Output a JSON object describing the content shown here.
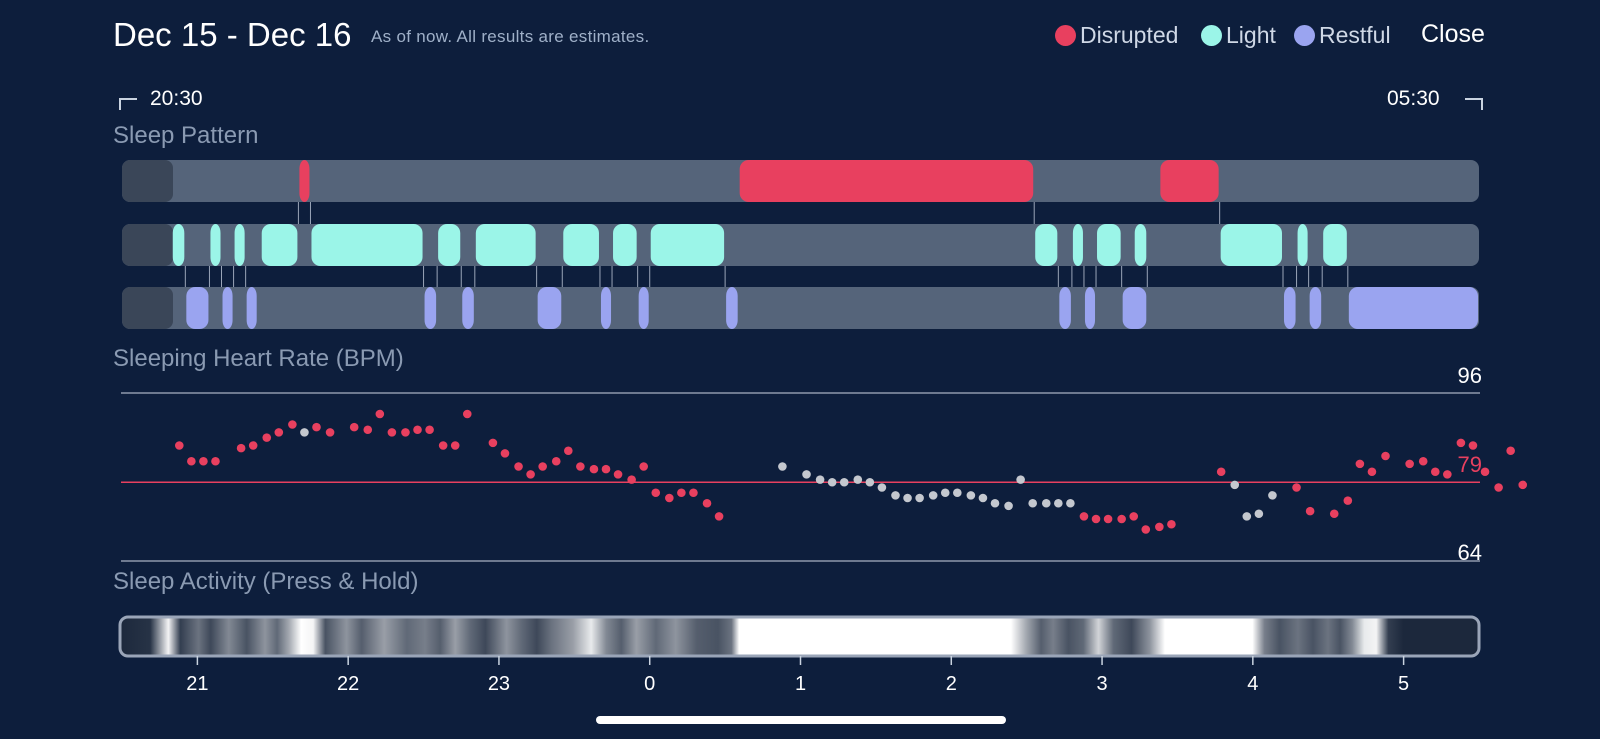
{
  "header": {
    "title": "Dec 15 - Dec 16",
    "subtitle": "As of now. All results are estimates.",
    "close_label": "Close"
  },
  "legend": [
    {
      "label": "Disrupted",
      "color": "#e8405f"
    },
    {
      "label": "Light",
      "color": "#9bf5e8"
    },
    {
      "label": "Restful",
      "color": "#9aa4f0"
    }
  ],
  "time_range": {
    "start": "20:30",
    "end": "05:30"
  },
  "sections": {
    "sleep_pattern": "Sleep Pattern",
    "heart_rate": "Sleeping Heart Rate (BPM)",
    "activity": "Sleep Activity (Press & Hold)"
  },
  "colors": {
    "background": "#0d1e3c",
    "track": "#55647a",
    "disrupted": "#e8405f",
    "light": "#9bf5e8",
    "restful": "#9aa4f0",
    "hr_dot_gray": "#c4c8cf",
    "avg_line": "#e8405f",
    "range_line": "#8e99ab"
  },
  "chart_data": [
    {
      "type": "timeline",
      "title": "Sleep Pattern",
      "x_unit": "hours since 20:30",
      "x_range": [
        0,
        9
      ],
      "rows": [
        {
          "name": "Disrupted",
          "segments": [
            [
              1.17,
              1.25
            ],
            [
              4.09,
              6.05
            ],
            [
              6.88,
              7.28
            ]
          ]
        },
        {
          "name": "Light",
          "segments": [
            [
              0.33,
              0.42
            ],
            [
              0.58,
              0.66
            ],
            [
              0.74,
              0.82
            ],
            [
              0.92,
              1.17
            ],
            [
              1.25,
              2.0
            ],
            [
              2.09,
              2.25
            ],
            [
              2.34,
              2.75
            ],
            [
              2.92,
              3.17
            ],
            [
              3.25,
              3.42
            ],
            [
              3.5,
              4.0
            ],
            [
              6.05,
              6.21
            ],
            [
              6.3,
              6.38
            ],
            [
              6.46,
              6.63
            ],
            [
              6.71,
              6.8
            ],
            [
              7.28,
              7.7
            ],
            [
              7.79,
              7.87
            ],
            [
              7.96,
              8.13
            ]
          ]
        },
        {
          "name": "Restful",
          "segments": [
            [
              0.42,
              0.58
            ],
            [
              0.66,
              0.74
            ],
            [
              0.82,
              0.9
            ],
            [
              2.0,
              2.09
            ],
            [
              2.25,
              2.34
            ],
            [
              2.75,
              2.92
            ],
            [
              3.17,
              3.25
            ],
            [
              3.42,
              3.5
            ],
            [
              4.0,
              4.09
            ],
            [
              6.21,
              6.3
            ],
            [
              6.38,
              6.46
            ],
            [
              6.63,
              6.8
            ],
            [
              7.7,
              7.79
            ],
            [
              7.87,
              7.96
            ],
            [
              8.13,
              9.0
            ]
          ]
        }
      ]
    },
    {
      "type": "scatter",
      "title": "Sleeping Heart Rate (BPM)",
      "x_unit": "hours since 20:30",
      "y_range": [
        64,
        96
      ],
      "average": 79,
      "y_labels": [
        "96",
        "79",
        "64"
      ],
      "points": [
        [
          0.38,
          86
        ],
        [
          0.46,
          83
        ],
        [
          0.54,
          83
        ],
        [
          0.62,
          83
        ],
        [
          0.79,
          85.5
        ],
        [
          0.87,
          86
        ],
        [
          0.96,
          87.5
        ],
        [
          1.04,
          88.5
        ],
        [
          1.13,
          90
        ],
        [
          1.21,
          88.5,
          "gray"
        ],
        [
          1.29,
          89.5
        ],
        [
          1.38,
          88.5
        ],
        [
          1.54,
          89.5
        ],
        [
          1.63,
          89
        ],
        [
          1.71,
          92
        ],
        [
          1.79,
          88.5
        ],
        [
          1.88,
          88.5
        ],
        [
          1.96,
          89
        ],
        [
          2.04,
          89
        ],
        [
          2.13,
          86
        ],
        [
          2.21,
          86
        ],
        [
          2.29,
          92
        ],
        [
          2.46,
          86.5
        ],
        [
          2.54,
          84.5
        ],
        [
          2.63,
          82
        ],
        [
          2.71,
          80.5
        ],
        [
          2.79,
          82
        ],
        [
          2.88,
          83
        ],
        [
          2.96,
          85
        ],
        [
          3.04,
          82
        ],
        [
          3.13,
          81.5
        ],
        [
          3.21,
          81.5
        ],
        [
          3.29,
          80.5
        ],
        [
          3.38,
          79.5
        ],
        [
          3.46,
          82
        ],
        [
          3.54,
          77
        ],
        [
          3.63,
          76
        ],
        [
          3.71,
          77
        ],
        [
          3.79,
          77
        ],
        [
          3.88,
          75
        ],
        [
          3.96,
          72.5
        ],
        [
          4.38,
          82,
          "gray"
        ],
        [
          4.54,
          80.5,
          "gray"
        ],
        [
          4.63,
          79.5,
          "gray"
        ],
        [
          4.71,
          79,
          "gray"
        ],
        [
          4.79,
          79,
          "gray"
        ],
        [
          4.88,
          79.5,
          "gray"
        ],
        [
          4.96,
          79,
          "gray"
        ],
        [
          5.04,
          78,
          "gray"
        ],
        [
          5.13,
          76.5,
          "gray"
        ],
        [
          5.21,
          76,
          "gray"
        ],
        [
          5.29,
          76,
          "gray"
        ],
        [
          5.38,
          76.5,
          "gray"
        ],
        [
          5.46,
          77,
          "gray"
        ],
        [
          5.54,
          77,
          "gray"
        ],
        [
          5.63,
          76.5,
          "gray"
        ],
        [
          5.71,
          76,
          "gray"
        ],
        [
          5.79,
          75,
          "gray"
        ],
        [
          5.88,
          74.5,
          "gray"
        ],
        [
          5.96,
          79.5,
          "gray"
        ],
        [
          6.04,
          75,
          "gray"
        ],
        [
          6.13,
          75,
          "gray"
        ],
        [
          6.21,
          75,
          "gray"
        ],
        [
          6.29,
          75,
          "gray"
        ],
        [
          6.38,
          72.5
        ],
        [
          6.46,
          72
        ],
        [
          6.54,
          72
        ],
        [
          6.63,
          72
        ],
        [
          6.71,
          72.5
        ],
        [
          6.79,
          70
        ],
        [
          6.88,
          70.5
        ],
        [
          6.96,
          71
        ],
        [
          7.29,
          81
        ],
        [
          7.38,
          78.5,
          "gray"
        ],
        [
          7.46,
          72.5,
          "gray"
        ],
        [
          7.54,
          73,
          "gray"
        ],
        [
          7.63,
          76.5,
          "gray"
        ],
        [
          7.79,
          78
        ],
        [
          7.88,
          73.5
        ],
        [
          8.04,
          73
        ],
        [
          8.13,
          75.5
        ],
        [
          8.21,
          82.5
        ],
        [
          8.29,
          81
        ],
        [
          8.38,
          84
        ],
        [
          8.54,
          82.5
        ],
        [
          8.63,
          83
        ],
        [
          8.71,
          81
        ],
        [
          8.79,
          80.5
        ],
        [
          8.88,
          86.5
        ],
        [
          8.96,
          86
        ],
        [
          9.04,
          81
        ],
        [
          9.13,
          78
        ],
        [
          9.21,
          85
        ],
        [
          9.29,
          78.5
        ]
      ]
    },
    {
      "type": "heatmap",
      "title": "Sleep Activity (Press & Hold)",
      "x_ticks": [
        "21",
        "22",
        "23",
        "0",
        "1",
        "2",
        "3",
        "4",
        "5"
      ],
      "tick_hours": [
        0.5,
        1.5,
        2.5,
        3.5,
        4.5,
        5.5,
        6.5,
        7.5,
        8.5
      ],
      "intensity": [
        [
          0.0,
          0.0
        ],
        [
          0.2,
          0.05
        ],
        [
          0.32,
          0.95
        ],
        [
          0.4,
          0.1
        ],
        [
          0.52,
          0.35
        ],
        [
          0.6,
          0.15
        ],
        [
          0.72,
          0.45
        ],
        [
          0.84,
          0.2
        ],
        [
          0.96,
          0.5
        ],
        [
          1.04,
          0.3
        ],
        [
          1.12,
          0.6
        ],
        [
          1.2,
          1.0
        ],
        [
          1.28,
          0.95
        ],
        [
          1.36,
          0.2
        ],
        [
          1.5,
          0.5
        ],
        [
          1.6,
          0.25
        ],
        [
          1.75,
          0.55
        ],
        [
          1.9,
          0.3
        ],
        [
          2.02,
          0.4
        ],
        [
          2.12,
          0.25
        ],
        [
          2.22,
          0.55
        ],
        [
          2.32,
          0.3
        ],
        [
          2.42,
          0.15
        ],
        [
          2.56,
          0.5
        ],
        [
          2.66,
          0.3
        ],
        [
          2.76,
          0.15
        ],
        [
          2.86,
          0.35
        ],
        [
          3.0,
          0.55
        ],
        [
          3.12,
          0.9
        ],
        [
          3.22,
          0.45
        ],
        [
          3.32,
          0.25
        ],
        [
          3.42,
          0.55
        ],
        [
          3.55,
          0.3
        ],
        [
          3.68,
          0.5
        ],
        [
          3.82,
          0.25
        ],
        [
          3.96,
          0.2
        ],
        [
          4.05,
          0.35
        ],
        [
          4.1,
          1.0
        ],
        [
          5.9,
          1.0
        ],
        [
          6.0,
          0.6
        ],
        [
          6.1,
          0.25
        ],
        [
          6.18,
          0.4
        ],
        [
          6.28,
          0.2
        ],
        [
          6.38,
          0.3
        ],
        [
          6.48,
          0.8
        ],
        [
          6.58,
          0.3
        ],
        [
          6.7,
          0.15
        ],
        [
          6.82,
          0.5
        ],
        [
          6.92,
          1.0
        ],
        [
          7.5,
          1.0
        ],
        [
          7.58,
          0.4
        ],
        [
          7.68,
          0.2
        ],
        [
          7.8,
          0.35
        ],
        [
          7.9,
          0.2
        ],
        [
          8.0,
          0.35
        ],
        [
          8.08,
          0.2
        ],
        [
          8.16,
          0.45
        ],
        [
          8.24,
          0.9
        ],
        [
          8.32,
          0.95
        ],
        [
          8.4,
          0.1
        ],
        [
          8.5,
          0.0
        ],
        [
          9.0,
          0.0
        ]
      ]
    }
  ]
}
